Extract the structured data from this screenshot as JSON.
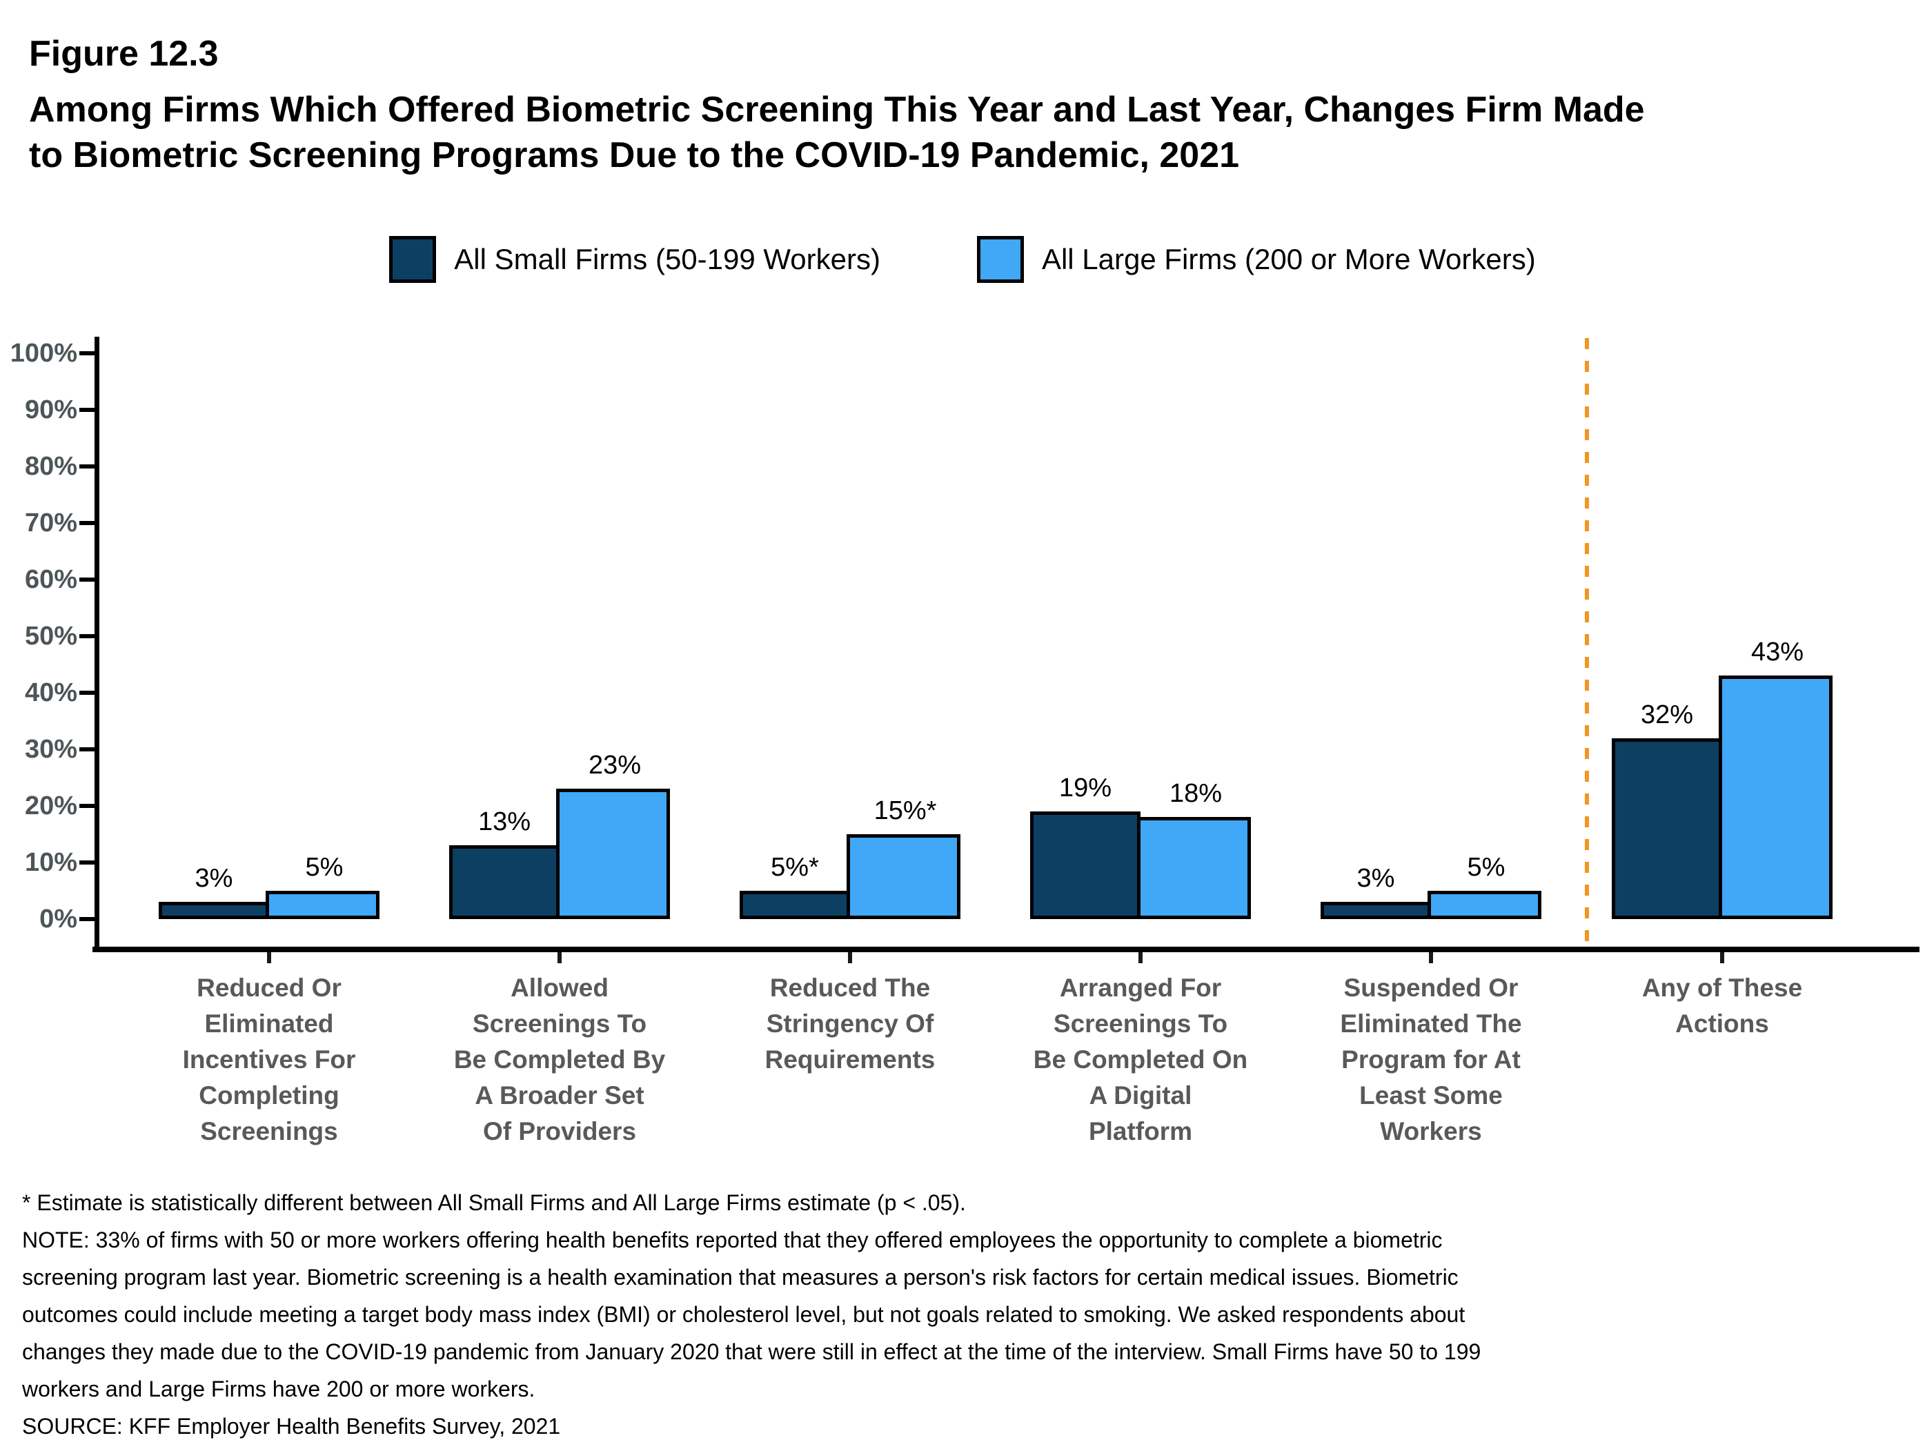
{
  "figure_label": "Figure 12.3",
  "title": "Among Firms Which Offered Biometric Screening This Year and Last Year, Changes Firm Made\nto Biometric Screening Programs Due to the COVID-19 Pandemic, 2021",
  "chart_data": {
    "type": "bar",
    "title": "Among Firms Which Offered Biometric Screening This Year and Last Year, Changes Firm Made to Biometric Screening Programs Due to the COVID-19 Pandemic, 2021",
    "categories": [
      "Reduced Or\nEliminated\nIncentives For\nCompleting\nScreenings",
      "Allowed\nScreenings To\nBe Completed By\nA Broader Set\nOf Providers",
      "Reduced The\nStringency Of\nRequirements",
      "Arranged For\nScreenings To\nBe Completed On\nA Digital\nPlatform",
      "Suspended Or\nEliminated The\nProgram for At\nLeast Some\nWorkers",
      "Any of These\nActions"
    ],
    "series": [
      {
        "name": "All Small Firms (50-199 Workers)",
        "color": "#0d3f63",
        "values": [
          3,
          13,
          5,
          19,
          3,
          32
        ],
        "value_labels": [
          "3%",
          "13%",
          "5%*",
          "19%",
          "3%",
          "32%"
        ]
      },
      {
        "name": "All Large Firms (200 or More Workers)",
        "color": "#41a7f7",
        "values": [
          5,
          23,
          15,
          18,
          5,
          43
        ],
        "value_labels": [
          "5%",
          "23%",
          "15%*",
          "18%",
          "5%",
          "43%"
        ]
      }
    ],
    "ylim": [
      0,
      100
    ],
    "ytick_step": 10,
    "ytick_labels": [
      "0%",
      "10%",
      "20%",
      "30%",
      "40%",
      "50%",
      "60%",
      "70%",
      "80%",
      "90%",
      "100%"
    ],
    "grid": false,
    "legend_position": "top",
    "separator": {
      "after_category_index": 4,
      "style": "dashed",
      "color": "#f5941f"
    }
  },
  "colors": {
    "small_firm_bar": "#0d3f63",
    "large_firm_bar": "#41a7f7",
    "separator_orange": "#f5941f",
    "axis": "#000000",
    "tick_label_gray": "#4e5559",
    "category_label_gray": "#58595b",
    "background": "#ffffff"
  },
  "footnotes": {
    "star_note": "* Estimate is statistically different between All Small Firms and All Large Firms estimate (p < .05).",
    "note": "NOTE: 33% of firms with 50 or more workers offering health benefits reported that they offered employees the opportunity to complete a biometric\nscreening program last year. Biometric screening is a health examination that measures a person's risk factors for certain medical issues. Biometric\noutcomes could include meeting a target body mass index (BMI) or cholesterol level, but not goals related to smoking. We asked respondents about\nchanges they made due to the COVID-19 pandemic from January 2020 that were still in effect at the time of the interview. Small Firms have 50 to 199\nworkers and Large Firms have 200 or more workers.",
    "source": "SOURCE: KFF Employer Health Benefits Survey, 2021"
  }
}
